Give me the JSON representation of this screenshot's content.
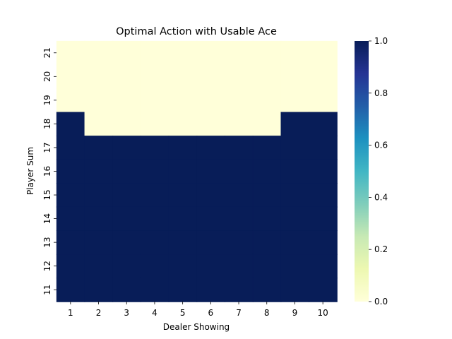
{
  "chart_data": {
    "type": "heatmap",
    "title": "Optimal Action with Usable Ace",
    "xlabel": "Dealer Showing",
    "ylabel": "Player Sum",
    "x_categories": [
      "1",
      "2",
      "3",
      "4",
      "5",
      "6",
      "7",
      "8",
      "9",
      "10"
    ],
    "y_categories": [
      "21",
      "20",
      "19",
      "18",
      "17",
      "16",
      "15",
      "14",
      "13",
      "12",
      "11"
    ],
    "values": [
      [
        0,
        0,
        0,
        0,
        0,
        0,
        0,
        0,
        0,
        0
      ],
      [
        0,
        0,
        0,
        0,
        0,
        0,
        0,
        0,
        0,
        0
      ],
      [
        0,
        0,
        0,
        0,
        0,
        0,
        0,
        0,
        0,
        0
      ],
      [
        1,
        0,
        0,
        0,
        0,
        0,
        0,
        0,
        1,
        1
      ],
      [
        1,
        1,
        1,
        1,
        1,
        1,
        1,
        1,
        1,
        1
      ],
      [
        1,
        1,
        1,
        1,
        1,
        1,
        1,
        1,
        1,
        1
      ],
      [
        1,
        1,
        1,
        1,
        1,
        1,
        1,
        1,
        1,
        1
      ],
      [
        1,
        1,
        1,
        1,
        1,
        1,
        1,
        1,
        1,
        1
      ],
      [
        1,
        1,
        1,
        1,
        1,
        1,
        1,
        1,
        1,
        1
      ],
      [
        1,
        1,
        1,
        1,
        1,
        1,
        1,
        1,
        1,
        1
      ],
      [
        1,
        1,
        1,
        1,
        1,
        1,
        1,
        1,
        1,
        1
      ]
    ],
    "colorbar": {
      "colormap": "YlGnBu",
      "range": [
        0.0,
        1.0
      ],
      "ticks": [
        "0.0",
        "0.2",
        "0.4",
        "0.6",
        "0.8",
        "1.0"
      ],
      "stops": [
        "#ffffd9",
        "#edf8b1",
        "#c7e9b4",
        "#7fcdbb",
        "#41b6c4",
        "#1d91c0",
        "#225ea8",
        "#253494",
        "#081d58"
      ]
    }
  }
}
